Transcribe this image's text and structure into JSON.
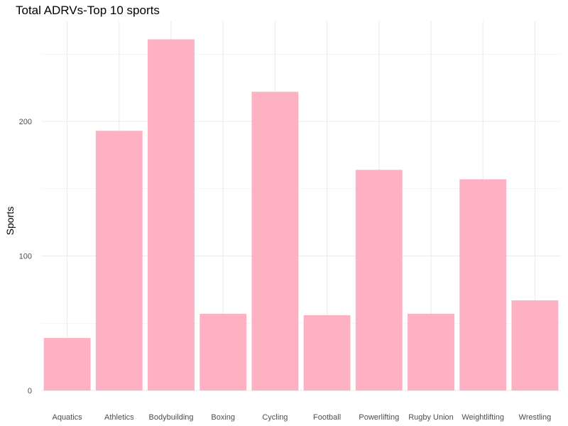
{
  "chart_data": {
    "type": "bar",
    "title": "Total ADRVs-Top 10 sports",
    "xlabel": "",
    "ylabel": "Sports",
    "categories": [
      "Aquatics",
      "Athletics",
      "Bodybuilding",
      "Boxing",
      "Cycling",
      "Football",
      "Powerlifting",
      "Rugby Union",
      "Weightlifting",
      "Wrestling"
    ],
    "values": [
      39,
      193,
      261,
      57,
      222,
      56,
      164,
      57,
      157,
      67
    ],
    "ylim": [
      0,
      274
    ],
    "yticks": [
      0,
      100,
      200
    ],
    "grid": true,
    "bar_color": "#FDB1C3",
    "grid_color": "#EBEBEB"
  }
}
